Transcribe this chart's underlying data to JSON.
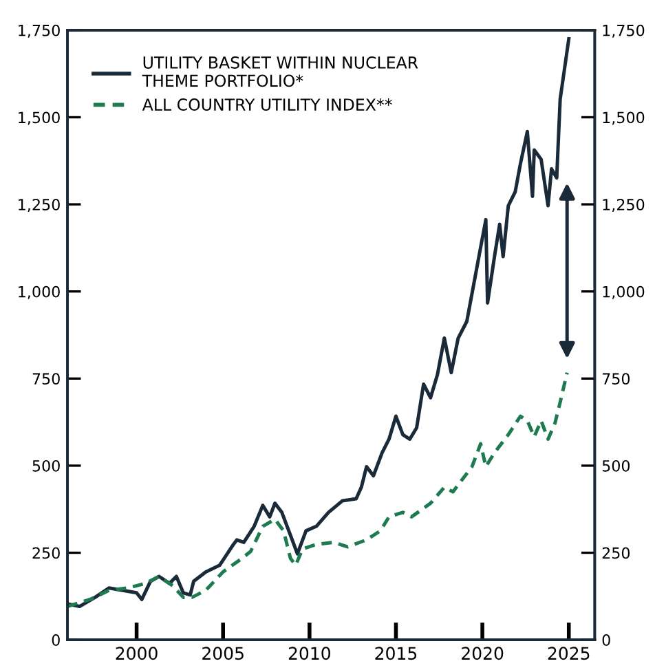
{
  "chart_data": {
    "type": "line",
    "series": [
      {
        "name": "UTILITY BASKET WITHIN NUCLEAR THEME PORTFOLIO*",
        "color": "#1a2a38",
        "line_style": "solid",
        "x": [
          1996.0,
          1996.7,
          1997.6,
          1998.4,
          1999.2,
          2000.0,
          2000.3,
          2000.8,
          2001.3,
          2001.9,
          2002.3,
          2002.7,
          2003.1,
          2003.3,
          2004.0,
          2004.8,
          2005.6,
          2005.8,
          2006.2,
          2006.8,
          2007.3,
          2007.7,
          2008.0,
          2008.4,
          2008.9,
          2009.3,
          2009.8,
          2010.4,
          2011.1,
          2011.9,
          2012.7,
          2013.0,
          2013.3,
          2013.7,
          2014.2,
          2014.6,
          2015.0,
          2015.4,
          2015.8,
          2016.2,
          2016.6,
          2017.0,
          2017.4,
          2017.8,
          2018.2,
          2018.6,
          2019.1,
          2019.8,
          2020.2,
          2020.3,
          2020.7,
          2021.0,
          2021.2,
          2021.5,
          2021.9,
          2022.2,
          2022.6,
          2022.9,
          2023.0,
          2023.4,
          2023.8,
          2024.0,
          2024.3,
          2024.5,
          2025.0
        ],
        "values": [
          103,
          96,
          122,
          149,
          142,
          135,
          116,
          168,
          182,
          162,
          182,
          135,
          129,
          168,
          195,
          214,
          274,
          287,
          280,
          326,
          386,
          353,
          392,
          366,
          300,
          247,
          313,
          326,
          366,
          399,
          405,
          438,
          497,
          471,
          537,
          576,
          642,
          589,
          576,
          609,
          734,
          695,
          761,
          866,
          767,
          866,
          914,
          1100,
          1206,
          967,
          1100,
          1193,
          1100,
          1246,
          1286,
          1366,
          1459,
          1273,
          1406,
          1379,
          1246,
          1352,
          1326,
          1552,
          1725
        ]
      },
      {
        "name": "ALL COUNTRY UTILITY INDEX**",
        "color": "#1e7a4f",
        "line_style": "dashed",
        "x": [
          1996.0,
          1997.3,
          1998.4,
          1999.5,
          2000.5,
          2001.3,
          2002.1,
          2002.7,
          2003.2,
          2004.0,
          2005.0,
          2006.1,
          2006.6,
          2007.3,
          2008.0,
          2008.5,
          2008.9,
          2009.2,
          2009.6,
          2010.4,
          2011.4,
          2012.2,
          2013.3,
          2014.1,
          2014.6,
          2015.4,
          2015.9,
          2017.0,
          2017.8,
          2018.3,
          2018.8,
          2019.4,
          2019.9,
          2020.2,
          2020.7,
          2021.5,
          2022.2,
          2022.6,
          2023.0,
          2023.4,
          2023.8,
          2024.2,
          2024.5,
          2024.9
        ],
        "values": [
          96,
          116,
          142,
          149,
          162,
          182,
          155,
          122,
          122,
          142,
          195,
          234,
          254,
          326,
          346,
          313,
          234,
          214,
          261,
          274,
          280,
          267,
          287,
          313,
          353,
          366,
          353,
          392,
          438,
          425,
          458,
          497,
          563,
          497,
          537,
          589,
          642,
          629,
          583,
          629,
          576,
          622,
          682,
          767
        ]
      }
    ],
    "xlim": [
      1996,
      2026.5
    ],
    "xticks": [
      2000,
      2005,
      2010,
      2015,
      2020,
      2025
    ],
    "ylim": [
      0,
      1750
    ],
    "yticks": [
      0,
      250,
      500,
      750,
      {
        "value": 1000,
        "label": "1,000"
      },
      {
        "value": 1250,
        "label": "1,250"
      },
      {
        "value": 1500,
        "label": "1,500"
      },
      {
        "value": 1750,
        "label": "1,750"
      }
    ],
    "y2lim": [
      0,
      1750
    ],
    "y2ticks": [
      0,
      250,
      500,
      750,
      {
        "value": 1000,
        "label": "1,000"
      },
      {
        "value": 1250,
        "label": "1,250"
      },
      {
        "value": 1500,
        "label": "1,500"
      },
      {
        "value": 1750,
        "label": "1,750"
      }
    ],
    "legend": "top left",
    "grid": false
  }
}
